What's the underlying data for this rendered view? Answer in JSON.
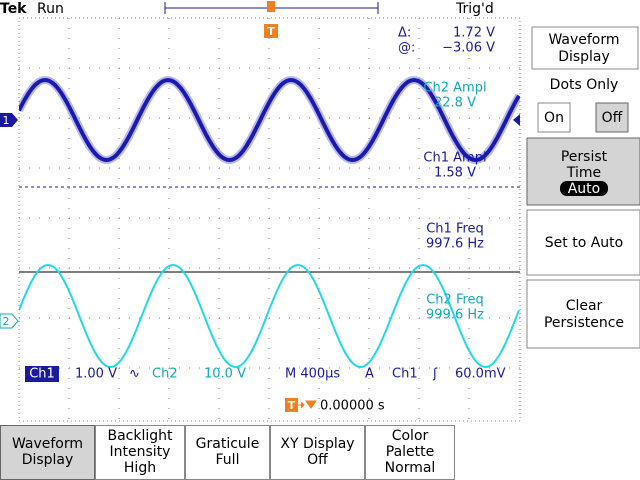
{
  "header": {
    "brand": "Tek",
    "state": "Run",
    "trigger_status": "Trig'd"
  },
  "trigger_marker": "T",
  "channel_markers": [
    "1",
    "2"
  ],
  "cursor_readout": {
    "delta_label": "Δ:",
    "delta_value": "1.72 V",
    "at_label": "@:",
    "at_value": "−3.06 V"
  },
  "measurements": [
    {
      "label": "Ch2 Ampl",
      "value": "22.8 V",
      "channel": "Ch2"
    },
    {
      "label": "Ch1 Ampl",
      "value": "1.58 V",
      "channel": "Ch1"
    },
    {
      "label": "Ch1 Freq",
      "value": "997.6 Hz",
      "channel": "Ch1"
    },
    {
      "label": "Ch2 Freq",
      "value": "999.6 Hz",
      "channel": "Ch2"
    }
  ],
  "status_bar": {
    "ch1": "Ch1",
    "ch1_scale": "1.00 V",
    "ch1_coupling": "∿",
    "ch2": "Ch2",
    "ch2_scale": "10.0 V",
    "timebase": "M 400μs",
    "mode": "A",
    "trigger_source": "Ch1",
    "trigger_slope": "ʃ",
    "trigger_level": "60.0mV",
    "trigger_offset": "0.00000 s"
  },
  "side_menu": {
    "title": [
      "Waveform",
      "Display"
    ],
    "dots_only": "Dots Only",
    "on": "On",
    "off": "Off",
    "persist_time": [
      "Persist",
      "Time"
    ],
    "persist_value": "Auto",
    "set_to_auto": "Set to Auto",
    "clear_persistence": [
      "Clear",
      "Persistence"
    ]
  },
  "bottom_menu": [
    {
      "lines": [
        "Waveform",
        "Display"
      ],
      "selected": true
    },
    {
      "lines": [
        "Backlight",
        "Intensity",
        "High"
      ],
      "selected": false
    },
    {
      "lines": [
        "Graticule",
        "Full"
      ],
      "selected": false
    },
    {
      "lines": [
        "XY Display",
        "Off"
      ],
      "selected": false
    },
    {
      "lines": [
        "Color",
        "Palette",
        "Normal"
      ],
      "selected": false
    }
  ]
}
